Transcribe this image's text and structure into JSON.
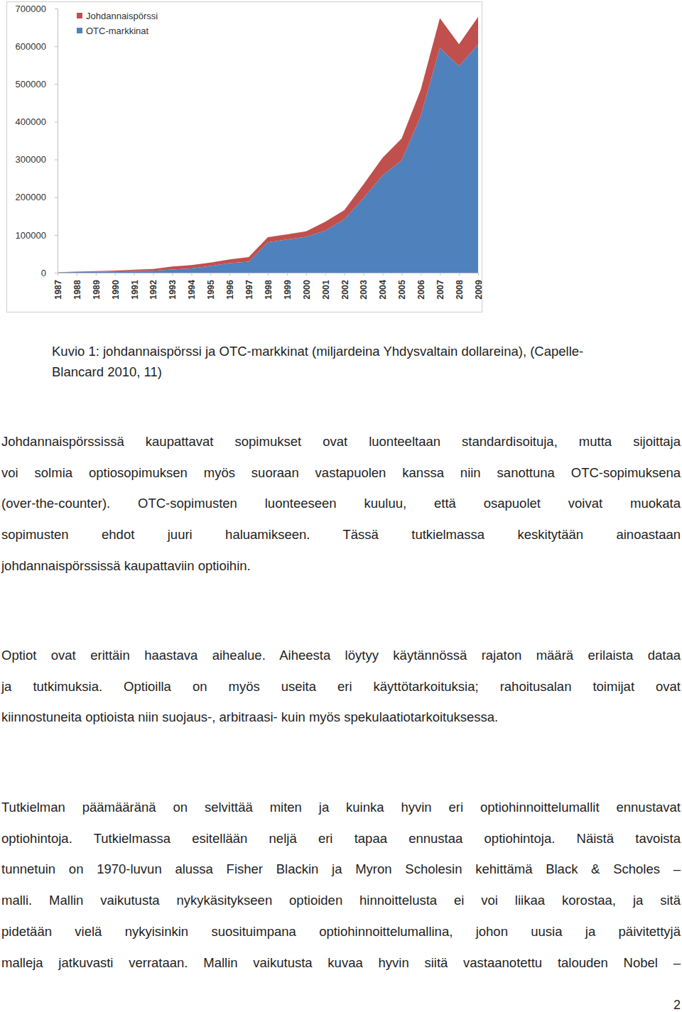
{
  "chart_data": {
    "type": "area",
    "stacked": true,
    "legend": "upper left",
    "grid": false,
    "x": [
      1987,
      1988,
      1989,
      1990,
      1991,
      1992,
      1993,
      1994,
      1995,
      1996,
      1997,
      1998,
      1999,
      2000,
      2001,
      2002,
      2003,
      2004,
      2005,
      2006,
      2007,
      2008,
      2009
    ],
    "xlim": [
      1987,
      2009
    ],
    "xticks": [
      1987,
      1988,
      1989,
      1990,
      1991,
      1992,
      1993,
      1994,
      1995,
      1996,
      1997,
      1998,
      1999,
      2000,
      2001,
      2002,
      2003,
      2004,
      2005,
      2006,
      2007,
      2008,
      2009
    ],
    "ylim": [
      0,
      700000
    ],
    "yticks": [
      0,
      100000,
      200000,
      300000,
      400000,
      500000,
      600000,
      700000
    ],
    "series": [
      {
        "name": "Johdannaispörssi",
        "color": "#c0504d",
        "values": [
          700,
          1300,
          1800,
          2300,
          3500,
          4600,
          7800,
          8900,
          9200,
          9900,
          12200,
          13900,
          13500,
          14300,
          23800,
          23800,
          36700,
          46600,
          57800,
          70400,
          79100,
          57900,
          73100
        ]
      },
      {
        "name": "OTC-markkinat",
        "color": "#4f81bd",
        "values": [
          900,
          1700,
          2500,
          3500,
          4500,
          5300,
          8500,
          11300,
          17700,
          25500,
          29000,
          80300,
          88200,
          95200,
          111200,
          141700,
          197200,
          257900,
          297700,
          414800,
          595700,
          547400,
          604600
        ]
      }
    ]
  },
  "caption": [
    "Kuvio 1: johdannaispörssi ja OTC-markkinat (miljardeina Yhdysvaltain dollareina), (Capelle-",
    "Blancard 2010, 11)"
  ],
  "paragraphs": [
    [
      "Johdannaispörssissä kaupattavat sopimukset ovat luonteeltaan standardisoituja, mutta sijoittaja",
      "voi solmia optiosopimuksen myös suoraan vastapuolen kanssa niin sanottuna OTC-sopimuksena",
      "(over-the-counter). OTC-sopimusten luonteeseen kuuluu, että osapuolet voivat muokata",
      "sopimusten ehdot juuri haluamikseen. Tässä tutkielmassa keskitytään ainoastaan",
      "johdannaispörssissä kaupattaviin optioihin."
    ],
    [
      "Optiot ovat erittäin haastava aihealue. Aiheesta löytyy käytännössä rajaton määrä erilaista dataa",
      "ja tutkimuksia. Optioilla on myös useita eri käyttötarkoituksia; rahoitusalan toimijat ovat",
      "kiinnostuneita optioista niin suojaus-, arbitraasi- kuin myös spekulaatiotarkoituksessa."
    ],
    [
      "Tutkielman päämääränä on selvittää miten ja kuinka hyvin eri optiohinnoittelumallit ennustavat",
      "optiohintoja. Tutkielmassa esitellään neljä eri tapaa ennustaa optiohintoja. Näistä tavoista",
      "tunnetuin on 1970-luvun alussa Fisher Blackin ja Myron Scholesin kehittämä Black & Scholes –",
      "malli. Mallin vaikutusta nykykäsitykseen optioiden hinnoittelusta ei voi liikaa korostaa, ja sitä",
      "pidetään vielä nykyisinkin suosituimpana optiohinnoittelumallina, johon uusia ja päivitettyjä",
      "malleja jatkuvasti verrataan. Mallin vaikutusta kuvaa hyvin siitä vastaanotettu talouden Nobel –"
    ]
  ],
  "page_number": 2
}
